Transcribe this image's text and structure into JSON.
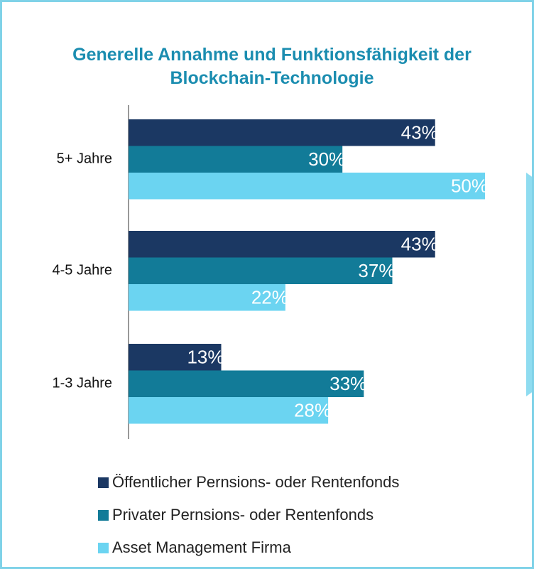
{
  "chart_data": {
    "type": "bar",
    "orientation": "horizontal",
    "title": "Generelle Annahme und Funktionsfähigkeit der Blockchain-Technologie",
    "categories": [
      "5+ Jahre",
      "4-5 Jahre",
      "1-3 Jahre"
    ],
    "series": [
      {
        "name": "Öffentlicher Pernsions- oder Rentenfonds",
        "color": "#1b3863",
        "values": [
          43,
          43,
          13
        ],
        "value_labels": [
          "43%",
          "43%",
          "13%"
        ]
      },
      {
        "name": "Privater Pernsions- oder Rentenfonds",
        "color": "#127b98",
        "values": [
          30,
          37,
          33
        ],
        "value_labels": [
          "30%",
          "37%",
          "33%"
        ]
      },
      {
        "name": "Asset Management Firma",
        "color": "#6bd4f1",
        "values": [
          50,
          22,
          28
        ],
        "value_labels": [
          "50%",
          "22%",
          "28%"
        ]
      }
    ],
    "xlim": [
      0,
      50
    ],
    "legend": "bottom"
  }
}
